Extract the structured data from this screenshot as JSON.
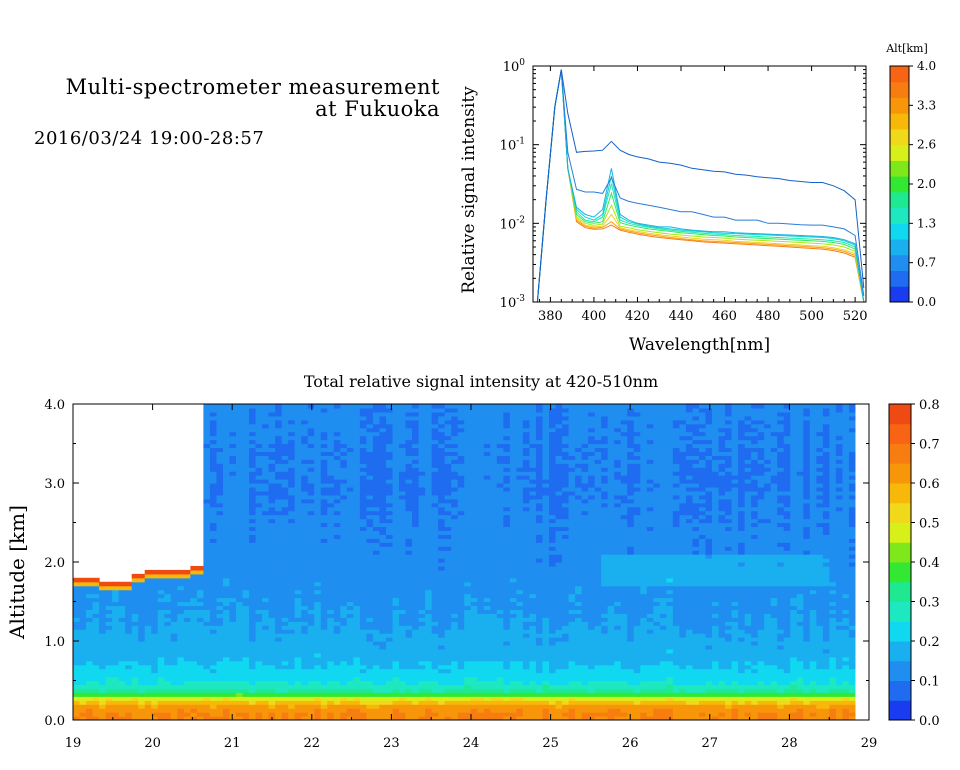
{
  "header": {
    "title_line1": "Multi-spectrometer measurement",
    "title_line2": "at Fukuoka",
    "date_range": "2016/03/24 19:00-28:57"
  },
  "chart_data": [
    {
      "type": "line",
      "ylabel": "Relative signal intensity",
      "xlabel": "Wavelength[nm]",
      "yscale": "log",
      "xlim": [
        372,
        525
      ],
      "ylim": [
        0.001,
        1
      ],
      "xticks": [
        380,
        400,
        420,
        440,
        460,
        480,
        500,
        520
      ],
      "yticks": [
        {
          "value": 0.001,
          "label": "10",
          "exp": "-3"
        },
        {
          "value": 0.01,
          "label": "10",
          "exp": "-2"
        },
        {
          "value": 0.1,
          "label": "10",
          "exp": "-1"
        },
        {
          "value": 1,
          "label": "10",
          "exp": "0"
        }
      ],
      "x": [
        374,
        378,
        382,
        385,
        388,
        392,
        396,
        400,
        404,
        408,
        412,
        416,
        420,
        425,
        430,
        435,
        440,
        445,
        450,
        455,
        460,
        465,
        470,
        475,
        480,
        485,
        490,
        495,
        500,
        505,
        510,
        515,
        520,
        524
      ],
      "colorbar": {
        "title": "Alt[km]",
        "ticks": [
          "0.0",
          "0.7",
          "1.3",
          "2.0",
          "2.6",
          "3.3",
          "4.0"
        ],
        "colors": [
          "#1a3cf0",
          "#1f6cf0",
          "#1f8ef0",
          "#1ab0f0",
          "#10d8f0",
          "#1ee8c0",
          "#1ee890",
          "#33e833",
          "#7ee81a",
          "#d8f01a",
          "#f0d81a",
          "#f8b80a",
          "#f8960a",
          "#f87d10",
          "#f86414"
        ]
      },
      "series": [
        {
          "color": "#1560c8",
          "values": [
            0.001,
            0.02,
            0.3,
            0.9,
            0.25,
            0.08,
            0.082,
            0.083,
            0.085,
            0.11,
            0.085,
            0.075,
            0.07,
            0.066,
            0.06,
            0.058,
            0.055,
            0.05,
            0.048,
            0.046,
            0.045,
            0.042,
            0.041,
            0.039,
            0.038,
            0.037,
            0.035,
            0.034,
            0.033,
            0.033,
            0.03,
            0.026,
            0.02,
            0.0015
          ]
        },
        {
          "color": "#2a7ed8",
          "values": [
            0.001,
            0.02,
            0.3,
            0.9,
            0.08,
            0.027,
            0.025,
            0.025,
            0.024,
            0.038,
            0.021,
            0.019,
            0.018,
            0.017,
            0.016,
            0.015,
            0.014,
            0.014,
            0.013,
            0.012,
            0.012,
            0.011,
            0.011,
            0.011,
            0.01,
            0.01,
            0.0098,
            0.0096,
            0.0095,
            0.0095,
            0.009,
            0.0085,
            0.007,
            0.0012
          ]
        },
        {
          "color": "#1ab0e0",
          "values": [
            0.001,
            0.02,
            0.3,
            0.9,
            0.05,
            0.016,
            0.013,
            0.012,
            0.015,
            0.05,
            0.013,
            0.011,
            0.01,
            0.0095,
            0.009,
            0.009,
            0.0085,
            0.0082,
            0.008,
            0.0078,
            0.0078,
            0.0076,
            0.0075,
            0.0074,
            0.0073,
            0.0072,
            0.0071,
            0.007,
            0.0069,
            0.0068,
            0.0066,
            0.0062,
            0.0055,
            0.001
          ]
        },
        {
          "color": "#10d0d0",
          "values": [
            0.001,
            0.02,
            0.3,
            0.9,
            0.05,
            0.015,
            0.012,
            0.011,
            0.013,
            0.04,
            0.012,
            0.0105,
            0.0098,
            0.0092,
            0.0088,
            0.0085,
            0.0082,
            0.008,
            0.0078,
            0.0076,
            0.0075,
            0.0074,
            0.0073,
            0.0072,
            0.0071,
            0.007,
            0.0069,
            0.0068,
            0.0067,
            0.0066,
            0.0064,
            0.006,
            0.0053,
            0.001
          ]
        },
        {
          "color": "#1ee8b0",
          "values": [
            0.001,
            0.02,
            0.3,
            0.9,
            0.05,
            0.014,
            0.011,
            0.0105,
            0.012,
            0.032,
            0.011,
            0.01,
            0.0094,
            0.0089,
            0.0085,
            0.0082,
            0.0079,
            0.0077,
            0.0075,
            0.0073,
            0.0072,
            0.007,
            0.0069,
            0.0068,
            0.0067,
            0.0066,
            0.0065,
            0.0064,
            0.0063,
            0.0062,
            0.006,
            0.0057,
            0.005,
            0.001
          ]
        },
        {
          "color": "#30e860",
          "values": [
            0.001,
            0.02,
            0.3,
            0.9,
            0.05,
            0.013,
            0.0105,
            0.01,
            0.0105,
            0.024,
            0.0102,
            0.0095,
            0.009,
            0.0085,
            0.0082,
            0.0079,
            0.0076,
            0.0074,
            0.0072,
            0.007,
            0.0069,
            0.0067,
            0.0066,
            0.0065,
            0.0064,
            0.0063,
            0.0062,
            0.0061,
            0.006,
            0.0059,
            0.0057,
            0.0054,
            0.0047,
            0.001
          ]
        },
        {
          "color": "#a8e818",
          "values": [
            0.001,
            0.02,
            0.3,
            0.9,
            0.05,
            0.012,
            0.01,
            0.0094,
            0.0098,
            0.017,
            0.0092,
            0.0088,
            0.0083,
            0.0079,
            0.0076,
            0.0073,
            0.0071,
            0.0069,
            0.0067,
            0.0066,
            0.0065,
            0.0063,
            0.0062,
            0.0061,
            0.006,
            0.0059,
            0.0058,
            0.0057,
            0.0056,
            0.0055,
            0.0053,
            0.005,
            0.0044,
            0.001
          ]
        },
        {
          "color": "#f0d020",
          "values": [
            0.001,
            0.02,
            0.3,
            0.9,
            0.05,
            0.0115,
            0.0095,
            0.009,
            0.0092,
            0.013,
            0.0088,
            0.0083,
            0.0079,
            0.0075,
            0.0072,
            0.0069,
            0.0067,
            0.0065,
            0.0063,
            0.0062,
            0.0061,
            0.0059,
            0.0058,
            0.0057,
            0.0056,
            0.0055,
            0.0054,
            0.0053,
            0.0052,
            0.0051,
            0.0049,
            0.0046,
            0.0041,
            0.001
          ]
        },
        {
          "color": "#f8a010",
          "values": [
            0.001,
            0.02,
            0.3,
            0.9,
            0.05,
            0.011,
            0.0092,
            0.0087,
            0.0089,
            0.0105,
            0.0085,
            0.008,
            0.0076,
            0.0072,
            0.0069,
            0.0066,
            0.0064,
            0.0062,
            0.006,
            0.0059,
            0.0058,
            0.0057,
            0.0056,
            0.0055,
            0.0054,
            0.0053,
            0.0052,
            0.0051,
            0.005,
            0.0049,
            0.0047,
            0.0044,
            0.0039,
            0.001
          ]
        },
        {
          "color": "#f87a14",
          "values": [
            0.001,
            0.02,
            0.3,
            0.9,
            0.05,
            0.0105,
            0.0088,
            0.0084,
            0.0085,
            0.0095,
            0.0082,
            0.0077,
            0.0073,
            0.0069,
            0.0066,
            0.0064,
            0.0062,
            0.006,
            0.0058,
            0.0057,
            0.0056,
            0.0055,
            0.0054,
            0.0053,
            0.0052,
            0.0051,
            0.005,
            0.0049,
            0.0048,
            0.0047,
            0.0045,
            0.0042,
            0.0037,
            0.001
          ]
        }
      ]
    },
    {
      "type": "heatmap",
      "title": "Total relative signal intensity at 420-510nm",
      "ylabel": "Altitude [km]",
      "xlim": [
        19,
        29
      ],
      "ylim": [
        0,
        4
      ],
      "xticks": [
        "19",
        "20",
        "21",
        "22",
        "23",
        "24",
        "25",
        "26",
        "27",
        "28",
        "29"
      ],
      "yticks": [
        "0.0",
        "1.0",
        "2.0",
        "3.0",
        "4.0"
      ],
      "data_end_hour": 28.83,
      "no_data": {
        "until_hour": 20.65,
        "above_km": [
          1.8,
          1.8,
          1.75,
          1.75,
          1.85,
          1.9,
          1.9,
          1.9,
          1.95
        ]
      },
      "profile": [
        {
          "alt_km": 0.1,
          "value": 0.65
        },
        {
          "alt_km": 0.2,
          "value": 0.6
        },
        {
          "alt_km": 0.28,
          "value": 0.48
        },
        {
          "alt_km": 0.35,
          "value": 0.32
        },
        {
          "alt_km": 0.5,
          "value": 0.24
        },
        {
          "alt_km": 0.8,
          "value": 0.18
        },
        {
          "alt_km": 1.2,
          "value": 0.15
        },
        {
          "alt_km": 2.0,
          "value": 0.12
        },
        {
          "alt_km": 3.0,
          "value": 0.1
        },
        {
          "alt_km": 4.0,
          "value": 0.11
        }
      ],
      "colorbar": {
        "ticks": [
          "0.0",
          "0.1",
          "0.2",
          "0.3",
          "0.4",
          "0.5",
          "0.6",
          "0.7",
          "0.8"
        ],
        "colors": [
          "#1a3cf0",
          "#1f6cf0",
          "#1f8ef0",
          "#1ab0f0",
          "#10d8f0",
          "#1ee8c0",
          "#1ee890",
          "#33e833",
          "#7ee81a",
          "#d8f01a",
          "#f0d81a",
          "#f8b80a",
          "#f8960a",
          "#f87d10",
          "#f86414",
          "#f04a14"
        ]
      }
    }
  ]
}
